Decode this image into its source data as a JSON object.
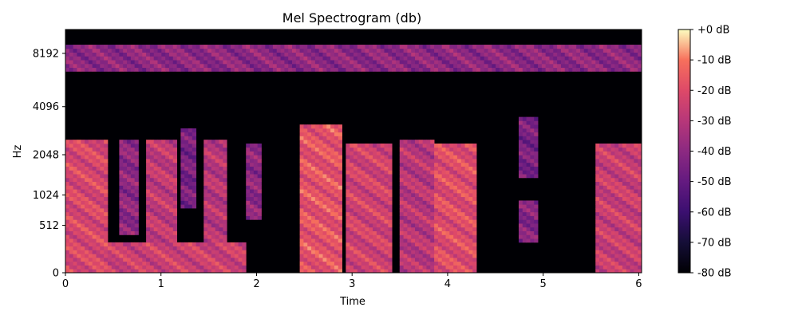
{
  "chart_data": {
    "type": "heatmap",
    "title": "Mel Spectrogram (db)",
    "xlabel": "Time",
    "ylabel": "Hz",
    "xlim": [
      0,
      6.03
    ],
    "x_ticks": [
      0,
      1,
      2,
      3,
      4,
      5,
      6
    ],
    "y_ticks": [
      {
        "value": 0,
        "label": "0"
      },
      {
        "value": 512,
        "label": "512"
      },
      {
        "value": 1024,
        "label": "1024"
      },
      {
        "value": 2048,
        "label": "2048"
      },
      {
        "value": 4096,
        "label": "4096"
      },
      {
        "value": 8192,
        "label": "8192"
      }
    ],
    "y_scale": "mel",
    "ylim": [
      0,
      11025
    ],
    "colormap": "magma",
    "colorbar": {
      "range": [
        -80,
        0
      ],
      "ticks": [
        {
          "value": 0,
          "label": "+0 dB"
        },
        {
          "value": -10,
          "label": "-10 dB"
        },
        {
          "value": -20,
          "label": "-20 dB"
        },
        {
          "value": -30,
          "label": "-30 dB"
        },
        {
          "value": -40,
          "label": "-40 dB"
        },
        {
          "value": -50,
          "label": "-50 dB"
        },
        {
          "value": -60,
          "label": "-60 dB"
        },
        {
          "value": -70,
          "label": "-70 dB"
        },
        {
          "value": -80,
          "label": "-80 dB"
        }
      ]
    },
    "energy_regions": [
      {
        "t": [
          0.0,
          0.45
        ],
        "hz": [
          0,
          2600
        ],
        "db": -22
      },
      {
        "t": [
          0.3,
          1.9
        ],
        "hz": [
          0,
          300
        ],
        "db": -25
      },
      {
        "t": [
          0.55,
          0.75
        ],
        "hz": [
          400,
          2600
        ],
        "db": -40
      },
      {
        "t": [
          0.85,
          1.15
        ],
        "hz": [
          300,
          2500
        ],
        "db": -28
      },
      {
        "t": [
          1.2,
          1.35
        ],
        "hz": [
          800,
          3000
        ],
        "db": -45
      },
      {
        "t": [
          1.45,
          1.7
        ],
        "hz": [
          0,
          2500
        ],
        "db": -30
      },
      {
        "t": [
          1.9,
          2.05
        ],
        "hz": [
          600,
          2400
        ],
        "db": -40
      },
      {
        "t": [
          2.45,
          2.9
        ],
        "hz": [
          0,
          3200
        ],
        "db": -18
      },
      {
        "t": [
          2.95,
          3.4
        ],
        "hz": [
          0,
          2400
        ],
        "db": -24
      },
      {
        "t": [
          3.5,
          3.85
        ],
        "hz": [
          0,
          2600
        ],
        "db": -30
      },
      {
        "t": [
          3.85,
          4.3
        ],
        "hz": [
          0,
          2400
        ],
        "db": -20
      },
      {
        "t": [
          4.75,
          4.95
        ],
        "hz": [
          300,
          900
        ],
        "db": -42
      },
      {
        "t": [
          4.75,
          4.95
        ],
        "hz": [
          1400,
          3600
        ],
        "db": -45
      },
      {
        "t": [
          5.55,
          6.03
        ],
        "hz": [
          0,
          2400
        ],
        "db": -26
      },
      {
        "t": [
          0.0,
          6.03
        ],
        "hz": [
          6500,
          9000
        ],
        "db": -40
      }
    ]
  }
}
